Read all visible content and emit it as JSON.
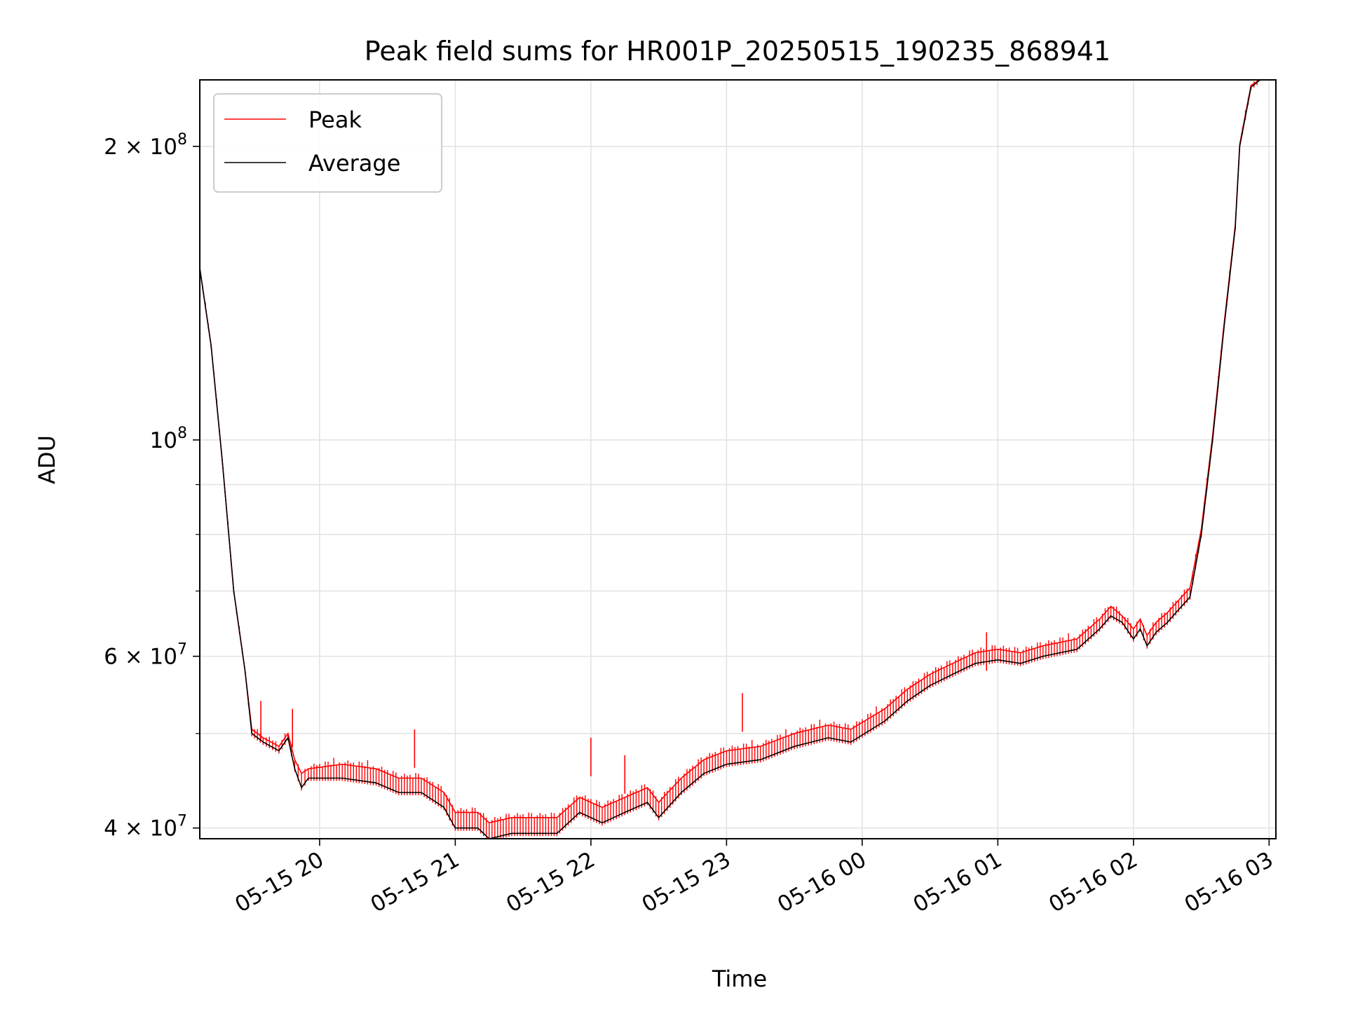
{
  "chart_data": {
    "type": "line",
    "title": "Peak field sums for HR001P_20250515_190235_868941",
    "xlabel": "Time",
    "ylabel": "ADU",
    "yscale": "log",
    "ylim": [
      39000000,
      234000000
    ],
    "xlim": [
      "2025-05-15 19:07",
      "2025-05-16 03:03"
    ],
    "grid": true,
    "legend_position": "top-left",
    "x_ticks": [
      {
        "t": "2025-05-15 20:00",
        "label": "05-15 20"
      },
      {
        "t": "2025-05-15 21:00",
        "label": "05-15 21"
      },
      {
        "t": "2025-05-15 22:00",
        "label": "05-15 22"
      },
      {
        "t": "2025-05-15 23:00",
        "label": "05-15 23"
      },
      {
        "t": "2025-05-16 00:00",
        "label": "05-16 00"
      },
      {
        "t": "2025-05-16 01:00",
        "label": "05-16 01"
      },
      {
        "t": "2025-05-16 02:00",
        "label": "05-16 02"
      },
      {
        "t": "2025-05-16 03:00",
        "label": "05-16 03"
      }
    ],
    "y_ticks": [
      {
        "value": 40000000,
        "mantissa": "4",
        "exp": "7"
      },
      {
        "value": 60000000,
        "mantissa": "6",
        "exp": "7"
      },
      {
        "value": 100000000,
        "mantissa": "",
        "exp": "8"
      },
      {
        "value": 200000000,
        "mantissa": "2",
        "exp": "8"
      }
    ],
    "y_minor_ticks": [
      50000000,
      70000000,
      80000000,
      90000000
    ],
    "series": [
      {
        "name": "Average",
        "color": "#000000",
        "points": [
          [
            "2025-05-15 19:07",
            150000000
          ],
          [
            "2025-05-15 19:12",
            125000000
          ],
          [
            "2025-05-15 19:17",
            95000000
          ],
          [
            "2025-05-15 19:22",
            70000000
          ],
          [
            "2025-05-15 19:27",
            58000000
          ],
          [
            "2025-05-15 19:30",
            50000000
          ],
          [
            "2025-05-15 19:35",
            49000000
          ],
          [
            "2025-05-15 19:42",
            48000000
          ],
          [
            "2025-05-15 19:46",
            49500000
          ],
          [
            "2025-05-15 19:49",
            46000000
          ],
          [
            "2025-05-15 19:52",
            44000000
          ],
          [
            "2025-05-15 19:55",
            45000000
          ],
          [
            "2025-05-15 20:10",
            45000000
          ],
          [
            "2025-05-15 20:25",
            44500000
          ],
          [
            "2025-05-15 20:35",
            43500000
          ],
          [
            "2025-05-15 20:45",
            43500000
          ],
          [
            "2025-05-15 20:55",
            42000000
          ],
          [
            "2025-05-15 21:00",
            40000000
          ],
          [
            "2025-05-15 21:10",
            40000000
          ],
          [
            "2025-05-15 21:15",
            39000000
          ],
          [
            "2025-05-15 21:25",
            39500000
          ],
          [
            "2025-05-15 21:35",
            39500000
          ],
          [
            "2025-05-15 21:45",
            39500000
          ],
          [
            "2025-05-15 21:55",
            41500000
          ],
          [
            "2025-05-15 22:05",
            40500000
          ],
          [
            "2025-05-15 22:15",
            41500000
          ],
          [
            "2025-05-15 22:25",
            42500000
          ],
          [
            "2025-05-15 22:30",
            41000000
          ],
          [
            "2025-05-15 22:40",
            43500000
          ],
          [
            "2025-05-15 22:50",
            45500000
          ],
          [
            "2025-05-15 23:00",
            46500000
          ],
          [
            "2025-05-15 23:15",
            47000000
          ],
          [
            "2025-05-15 23:30",
            48500000
          ],
          [
            "2025-05-15 23:45",
            49500000
          ],
          [
            "2025-05-15 23:55",
            49000000
          ],
          [
            "2025-05-16 00:10",
            51500000
          ],
          [
            "2025-05-16 00:20",
            54000000
          ],
          [
            "2025-05-16 00:30",
            56000000
          ],
          [
            "2025-05-16 00:40",
            57500000
          ],
          [
            "2025-05-16 00:50",
            59000000
          ],
          [
            "2025-05-16 01:00",
            59500000
          ],
          [
            "2025-05-16 01:10",
            59000000
          ],
          [
            "2025-05-16 01:20",
            60000000
          ],
          [
            "2025-05-16 01:35",
            61000000
          ],
          [
            "2025-05-16 01:45",
            64000000
          ],
          [
            "2025-05-16 01:50",
            66000000
          ],
          [
            "2025-05-16 01:55",
            65000000
          ],
          [
            "2025-05-16 02:00",
            62500000
          ],
          [
            "2025-05-16 02:03",
            64000000
          ],
          [
            "2025-05-16 02:06",
            61500000
          ],
          [
            "2025-05-16 02:10",
            63500000
          ],
          [
            "2025-05-16 02:15",
            65000000
          ],
          [
            "2025-05-16 02:20",
            67000000
          ],
          [
            "2025-05-16 02:25",
            69000000
          ],
          [
            "2025-05-16 02:30",
            80000000
          ],
          [
            "2025-05-16 02:35",
            100000000
          ],
          [
            "2025-05-16 02:40",
            130000000
          ],
          [
            "2025-05-16 02:45",
            165000000
          ],
          [
            "2025-05-16 02:47",
            200000000
          ],
          [
            "2025-05-16 02:52",
            230000000
          ],
          [
            "2025-05-16 02:56",
            234000000
          ]
        ]
      },
      {
        "name": "Peak",
        "color": "#ff0000",
        "points": [
          [
            "2025-05-15 19:07",
            150000000
          ],
          [
            "2025-05-15 19:12",
            125000000
          ],
          [
            "2025-05-15 19:17",
            95000000
          ],
          [
            "2025-05-15 19:22",
            70000000
          ],
          [
            "2025-05-15 19:27",
            58000000
          ],
          [
            "2025-05-15 19:30",
            50500000
          ],
          [
            "2025-05-15 19:35",
            49500000
          ],
          [
            "2025-05-15 19:42",
            48500000
          ],
          [
            "2025-05-15 19:46",
            50000000
          ],
          [
            "2025-05-15 19:49",
            47000000
          ],
          [
            "2025-05-15 19:52",
            45500000
          ],
          [
            "2025-05-15 19:55",
            46000000
          ],
          [
            "2025-05-15 20:10",
            46500000
          ],
          [
            "2025-05-15 20:25",
            46000000
          ],
          [
            "2025-05-15 20:35",
            45000000
          ],
          [
            "2025-05-15 20:45",
            45000000
          ],
          [
            "2025-05-15 20:55",
            43500000
          ],
          [
            "2025-05-15 21:00",
            41500000
          ],
          [
            "2025-05-15 21:10",
            41500000
          ],
          [
            "2025-05-15 21:15",
            40500000
          ],
          [
            "2025-05-15 21:25",
            41000000
          ],
          [
            "2025-05-15 21:35",
            41000000
          ],
          [
            "2025-05-15 21:45",
            41000000
          ],
          [
            "2025-05-15 21:55",
            43000000
          ],
          [
            "2025-05-15 22:05",
            42000000
          ],
          [
            "2025-05-15 22:15",
            43000000
          ],
          [
            "2025-05-15 22:25",
            44000000
          ],
          [
            "2025-05-15 22:30",
            42500000
          ],
          [
            "2025-05-15 22:40",
            45000000
          ],
          [
            "2025-05-15 22:50",
            47000000
          ],
          [
            "2025-05-15 23:00",
            48000000
          ],
          [
            "2025-05-15 23:15",
            48500000
          ],
          [
            "2025-05-15 23:30",
            50000000
          ],
          [
            "2025-05-15 23:45",
            51000000
          ],
          [
            "2025-05-15 23:55",
            50500000
          ],
          [
            "2025-05-16 00:10",
            53000000
          ],
          [
            "2025-05-16 00:20",
            55500000
          ],
          [
            "2025-05-16 00:30",
            57500000
          ],
          [
            "2025-05-16 00:40",
            59000000
          ],
          [
            "2025-05-16 00:50",
            60500000
          ],
          [
            "2025-05-16 01:00",
            61000000
          ],
          [
            "2025-05-16 01:10",
            60500000
          ],
          [
            "2025-05-16 01:20",
            61500000
          ],
          [
            "2025-05-16 01:35",
            62500000
          ],
          [
            "2025-05-16 01:45",
            65500000
          ],
          [
            "2025-05-16 01:50",
            67500000
          ],
          [
            "2025-05-16 01:55",
            66000000
          ],
          [
            "2025-05-16 02:00",
            64000000
          ],
          [
            "2025-05-16 02:03",
            65500000
          ],
          [
            "2025-05-16 02:06",
            63000000
          ],
          [
            "2025-05-16 02:10",
            65000000
          ],
          [
            "2025-05-16 02:15",
            66500000
          ],
          [
            "2025-05-16 02:20",
            68500000
          ],
          [
            "2025-05-16 02:25",
            70500000
          ],
          [
            "2025-05-16 02:30",
            81000000
          ],
          [
            "2025-05-16 02:35",
            101000000
          ],
          [
            "2025-05-16 02:40",
            131000000
          ],
          [
            "2025-05-16 02:45",
            166000000
          ],
          [
            "2025-05-16 02:47",
            201000000
          ],
          [
            "2025-05-16 02:52",
            231000000
          ],
          [
            "2025-05-16 02:56",
            234000000
          ]
        ],
        "spikes": [
          [
            "2025-05-15 19:34",
            54000000
          ],
          [
            "2025-05-15 19:48",
            53000000
          ],
          [
            "2025-05-15 20:42",
            50500000
          ],
          [
            "2025-05-15 21:60",
            49500000
          ],
          [
            "2025-05-15 22:15",
            47500000
          ],
          [
            "2025-05-15 23:07",
            55000000
          ],
          [
            "2025-05-16 00:55",
            63500000
          ]
        ]
      }
    ]
  }
}
